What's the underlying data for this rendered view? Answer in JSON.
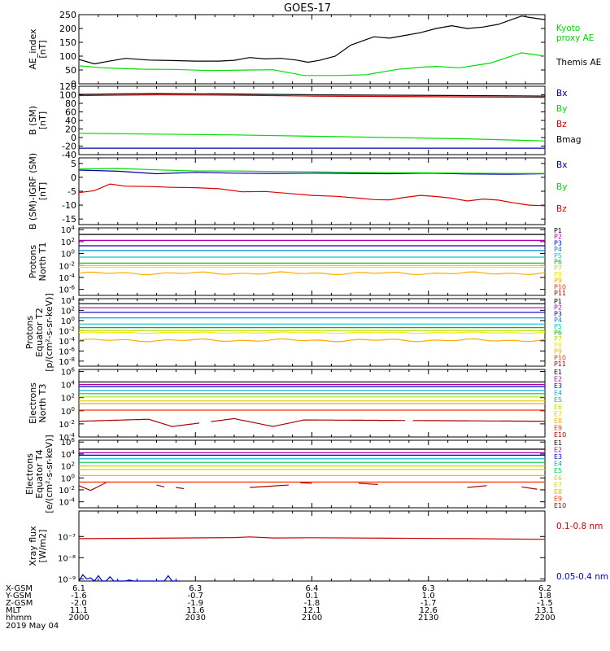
{
  "title": "GOES-17",
  "chart_data": [
    {
      "type": "line",
      "ylabel": [
        "AE_index",
        "[nT]"
      ],
      "ylim": [
        0,
        250
      ],
      "yticks": [
        "250",
        "200",
        "150",
        "100",
        "50",
        "0"
      ],
      "ytick_values": [
        250,
        200,
        150,
        100,
        50,
        0
      ],
      "series": [
        {
          "name": "Kyoto proxy AE",
          "label_lines": [
            "Kyoto",
            "proxy AE"
          ],
          "color": "#00dd00",
          "x": [
            0,
            3,
            8,
            12,
            17,
            22,
            25,
            29,
            33,
            37,
            38,
            41,
            44,
            46,
            49,
            53,
            57,
            60
          ],
          "y": [
            65,
            58,
            53,
            52,
            48,
            50,
            51,
            30,
            30,
            33,
            38,
            52,
            60,
            63,
            58,
            75,
            112,
            100
          ]
        },
        {
          "name": "Themis AE",
          "label_lines": [
            "Themis AE"
          ],
          "color": "#000000",
          "x": [
            0,
            2,
            3.5,
            6,
            9,
            12,
            15,
            18,
            20,
            22,
            24,
            26,
            28,
            29.5,
            31,
            33,
            35,
            37,
            38,
            40,
            42,
            44,
            46,
            48,
            50,
            52,
            54,
            56,
            57,
            58,
            60
          ],
          "y": [
            88,
            72,
            80,
            92,
            86,
            84,
            82,
            82,
            85,
            95,
            90,
            92,
            86,
            78,
            85,
            100,
            140,
            160,
            170,
            165,
            175,
            185,
            200,
            210,
            200,
            205,
            215,
            235,
            245,
            240,
            232
          ]
        }
      ]
    },
    {
      "type": "line",
      "ylabel": [
        "B (SM)",
        "[nT]"
      ],
      "ylim": [
        -40,
        120
      ],
      "yticks": [
        "120",
        "100",
        "80",
        "60",
        "40",
        "20",
        "0",
        "-20",
        "-40"
      ],
      "ytick_values": [
        120,
        100,
        80,
        60,
        40,
        20,
        0,
        -20,
        -40
      ],
      "series": [
        {
          "name": "Bx",
          "color": "#0000aa",
          "x": [
            0,
            60
          ],
          "y": [
            -25,
            -25
          ]
        },
        {
          "name": "By",
          "color": "#00dd00",
          "x": [
            0,
            10,
            20,
            30,
            40,
            50,
            60
          ],
          "y": [
            10,
            8,
            6,
            3,
            0,
            -3,
            -8
          ]
        },
        {
          "name": "Bz",
          "color": "#cc0000",
          "x": [
            0,
            10,
            20,
            30,
            40,
            50,
            60
          ],
          "y": [
            98,
            100,
            99,
            97,
            96,
            95,
            94
          ]
        },
        {
          "name": "Bmag",
          "color": "#000000",
          "x": [
            0,
            10,
            20,
            30,
            40,
            50,
            60
          ],
          "y": [
            101,
            103,
            102,
            100,
            99,
            98,
            97
          ]
        }
      ]
    },
    {
      "type": "line",
      "ylabel": [
        "B (SM)-IGRF (SM)",
        "[nT]"
      ],
      "ylim": [
        -17,
        7
      ],
      "yticks": [
        "5",
        "0",
        "-5",
        "-10",
        "-15"
      ],
      "ytick_values": [
        5,
        0,
        -5,
        -10,
        -15
      ],
      "series": [
        {
          "name": "Bx",
          "color": "#0000aa",
          "x": [
            0,
            5,
            10,
            15,
            20,
            25,
            30,
            35,
            40,
            45,
            50,
            55,
            60
          ],
          "y": [
            2.6,
            2.2,
            1.3,
            1.8,
            1.5,
            1.4,
            1.5,
            1.4,
            1.3,
            1.5,
            1.2,
            1.1,
            1.3
          ]
        },
        {
          "name": "By",
          "color": "#00dd00",
          "x": [
            0,
            5,
            10,
            15,
            20,
            25,
            30,
            35,
            40,
            45,
            50,
            55,
            60
          ],
          "y": [
            3.0,
            3.2,
            2.7,
            2.3,
            2.3,
            2.1,
            2.0,
            1.8,
            1.7,
            1.6,
            1.5,
            1.4,
            1.4
          ]
        },
        {
          "name": "Bz",
          "color": "#dd0000",
          "x": [
            0,
            2,
            4,
            6,
            9,
            12,
            15,
            18,
            21,
            24,
            27,
            30,
            33,
            36,
            38,
            40,
            42,
            44,
            46,
            48,
            50,
            52,
            54,
            56,
            58,
            60
          ],
          "y": [
            -5.5,
            -4.8,
            -2.4,
            -3.2,
            -3.3,
            -3.6,
            -3.7,
            -4.1,
            -5.2,
            -5.1,
            -5.8,
            -6.5,
            -6.8,
            -7.5,
            -8.0,
            -8.1,
            -7.2,
            -6.5,
            -6.9,
            -7.5,
            -8.5,
            -7.8,
            -8.2,
            -9.2,
            -10.0,
            -10.2
          ]
        }
      ]
    },
    {
      "type": "line",
      "scale": "log",
      "ylabel": [
        "Protons",
        "North T1"
      ],
      "ylim_exp": [
        -7,
        4.3
      ],
      "yticks_exp": [
        4,
        2,
        0,
        -2,
        -4,
        -6
      ],
      "series": [
        {
          "name": "P1",
          "color": "#000000",
          "level": 3.2
        },
        {
          "name": "P2",
          "color": "#aa00aa",
          "level": 2.2
        },
        {
          "name": "P3",
          "color": "#0000cc",
          "level": 1.3
        },
        {
          "name": "P4",
          "color": "#0088dd",
          "level": 0.5
        },
        {
          "name": "P5",
          "color": "#00cccc",
          "level": -0.6
        },
        {
          "name": "P6",
          "color": "#00bb00",
          "level": -1.6
        },
        {
          "name": "P7",
          "color": "#bbdd00",
          "level": -2.0
        },
        {
          "name": "P8",
          "color": "#eeee00",
          "level": -2.3
        },
        {
          "name": "P9",
          "color": "#ffaa00",
          "level": -3.3,
          "wiggle": 0.25
        },
        {
          "name": "P10",
          "color": "#ff3300",
          "level": null
        },
        {
          "name": "P11",
          "color": "#aa0000",
          "level": null
        }
      ]
    },
    {
      "type": "line",
      "scale": "log",
      "ylabel": [
        "Protons",
        "Equator T2",
        "[p/(cm²-s-sr-keV)]"
      ],
      "ylim_exp": [
        -9,
        4.3
      ],
      "yticks_exp": [
        4,
        2,
        0,
        -2,
        -4,
        -6,
        -8
      ],
      "series": [
        {
          "name": "P1",
          "color": "#000000",
          "level": 3.3
        },
        {
          "name": "P2",
          "color": "#aa00aa",
          "level": 2.5
        },
        {
          "name": "P3",
          "color": "#0000cc",
          "level": 1.6
        },
        {
          "name": "P4",
          "color": "#0088dd",
          "level": 0.5
        },
        {
          "name": "P5",
          "color": "#00cccc",
          "level": -0.7
        },
        {
          "name": "P6",
          "color": "#00bb00",
          "level": -1.4
        },
        {
          "name": "P7",
          "color": "#bbdd00",
          "level": -2.0
        },
        {
          "name": "P8",
          "color": "#eeee00",
          "level": -2.4,
          "wiggle": 0.15
        },
        {
          "name": "P9",
          "color": "#ffaa00",
          "level": -3.9,
          "wiggle": 0.3
        },
        {
          "name": "P10",
          "color": "#ff3300",
          "level": null
        },
        {
          "name": "P11",
          "color": "#aa0000",
          "level": null
        }
      ]
    },
    {
      "type": "line",
      "scale": "log",
      "ylabel": [
        "Electrons",
        "North T3"
      ],
      "ylim_exp": [
        -4,
        6.3
      ],
      "yticks_exp": [
        6,
        4,
        2,
        0,
        -2,
        -4
      ],
      "series": [
        {
          "name": "E1",
          "color": "#000000",
          "level": 4.4
        },
        {
          "name": "E2",
          "color": "#aa00aa",
          "level": 4.0
        },
        {
          "name": "E3",
          "color": "#0000cc",
          "level": 3.7
        },
        {
          "name": "E4",
          "color": "#00aacc",
          "level": 3.1
        },
        {
          "name": "E5",
          "color": "#00cc44",
          "level": 2.6
        },
        {
          "name": "E6",
          "color": "#bbdd00",
          "level": 2.1
        },
        {
          "name": "E7",
          "color": "#ddcc00",
          "level": 1.5
        },
        {
          "name": "E8",
          "color": "#ffaa00",
          "level": 1.1
        },
        {
          "name": "E9",
          "color": "#ff3300",
          "level": 0.1
        },
        {
          "name": "E10",
          "color": "#aa0000",
          "level": -1.6,
          "dips": [
            [
              9,
              -1.3
            ],
            [
              12,
              -2.4
            ],
            [
              20,
              -1.2
            ],
            [
              25,
              -2.4
            ],
            [
              29,
              -1.4
            ]
          ],
          "gaps": [
            [
              15.5,
              16.8
            ],
            [
              42,
              43
            ]
          ]
        }
      ]
    },
    {
      "type": "line",
      "scale": "log",
      "ylabel": [
        "Electrons",
        "Equator T4",
        "[e/(cm²-s-sr-keV)]"
      ],
      "ylim_exp": [
        -5,
        6.3
      ],
      "yticks_exp": [
        6,
        4,
        2,
        0,
        -2,
        -4
      ],
      "series": [
        {
          "name": "E1",
          "color": "#000000",
          "level": 4.8
        },
        {
          "name": "E2",
          "color": "#aa00aa",
          "level": 4.2
        },
        {
          "name": "E3",
          "color": "#0000cc",
          "level": 3.8
        },
        {
          "name": "E4",
          "color": "#00aacc",
          "level": 3.2
        },
        {
          "name": "E5",
          "color": "#00cc44",
          "level": 2.6
        },
        {
          "name": "E6",
          "color": "#bbdd00",
          "level": 2.0
        },
        {
          "name": "E7",
          "color": "#ddcc00",
          "level": 1.4
        },
        {
          "name": "E8",
          "color": "#ffaa00",
          "level": 0.4
        },
        {
          "name": "E9",
          "color": "#ff3300",
          "level": -0.7
        },
        {
          "name": "E10",
          "color": "#aa0000",
          "segments": [
            [
              0,
              1.5,
              -1.3,
              -2.1
            ],
            [
              1.5,
              3.5,
              -2.1,
              -0.8
            ],
            [
              10,
              11,
              -1.2,
              -1.5
            ],
            [
              12.5,
              13.5,
              -1.6,
              -1.8
            ],
            [
              22,
              27,
              -1.6,
              -1.2
            ],
            [
              28.5,
              30,
              -0.8,
              -0.9
            ],
            [
              36,
              38.5,
              -0.9,
              -1.1
            ],
            [
              50,
              52.5,
              -1.6,
              -1.3
            ],
            [
              57,
              59,
              -1.5,
              -1.9
            ]
          ]
        }
      ]
    },
    {
      "type": "line",
      "scale": "log",
      "ylabel": [
        "Xray flux",
        "[W/m2]"
      ],
      "ylim_exp": [
        -9.1,
        -5.8
      ],
      "ytick_labels": [
        "10⁻⁷",
        "10⁻⁸",
        "10⁻⁹"
      ],
      "ytick_exp": [
        -7,
        -8,
        -9
      ],
      "series": [
        {
          "name": "0.1-0.8 nm",
          "color": "#cc0000",
          "x": [
            0,
            10,
            20,
            22,
            25,
            30,
            40,
            50,
            55,
            60
          ],
          "y_exp": [
            -7.1,
            -7.08,
            -7.05,
            -7.02,
            -7.07,
            -7.06,
            -7.08,
            -7.1,
            -7.12,
            -7.13
          ]
        },
        {
          "name": "0.05-0.4 nm",
          "color": "#0000cc",
          "x": [
            0,
            0.5,
            1,
            1.5,
            2,
            2.5,
            3,
            3.5,
            4,
            4.5,
            5,
            6,
            6.5,
            7,
            8,
            11,
            11.5,
            12,
            12.5,
            13
          ],
          "y_exp": [
            -9.1,
            -8.8,
            -9.0,
            -8.95,
            -9.1,
            -8.85,
            -9.1,
            -9.1,
            -8.9,
            -9.1,
            -9.1,
            -9.1,
            -9.05,
            -9.1,
            -9.1,
            -9.1,
            -8.85,
            -9.1,
            -9.1,
            -9.1
          ]
        }
      ]
    }
  ],
  "footer": {
    "row_labels": [
      "X-GSM",
      "Y-GSM",
      "Z-GSM",
      "MLT",
      "hhmm",
      "2019 May 04"
    ],
    "columns": [
      {
        "x": 0,
        "values": [
          "6.1",
          "-1.6",
          "-2.0",
          "11.1",
          "2000"
        ]
      },
      {
        "x": 15,
        "values": [
          "6.3",
          "-0.7",
          "-1.9",
          "11.6",
          "2030"
        ]
      },
      {
        "x": 30,
        "values": [
          "6.4",
          "0.1",
          "-1.8",
          "12.1",
          "2100"
        ]
      },
      {
        "x": 45,
        "values": [
          "6.3",
          "1.0",
          "-1.7",
          "12.6",
          "2130"
        ]
      },
      {
        "x": 60,
        "values": [
          "6.2",
          "1.8",
          "-1.5",
          "13.1",
          "2200"
        ]
      }
    ]
  }
}
